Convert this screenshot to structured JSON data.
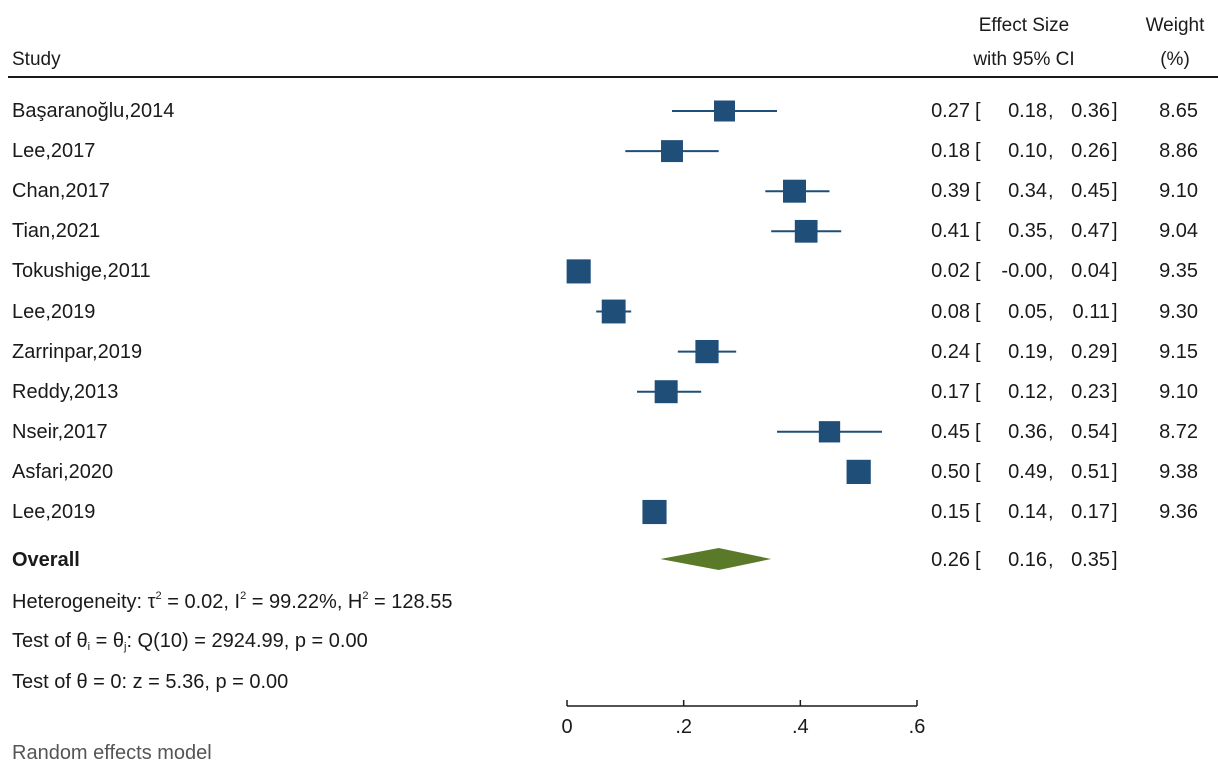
{
  "header": {
    "study": "Study",
    "effect_line1": "Effect Size",
    "effect_line2": "with 95% CI",
    "weight_line1": "Weight",
    "weight_line2": "(%)"
  },
  "overall": {
    "label": "Overall",
    "est": "0.26",
    "lo": "0.16",
    "hi": "0.35"
  },
  "heterogeneity": {
    "prefix": "Heterogeneity: τ",
    "tau_sup": "2",
    "part2": " = 0.02, I",
    "i_sup": "2",
    "part3": " = 99.22%, H",
    "h_sup": "2",
    "part4": " = 128.55"
  },
  "test_homog": {
    "prefix": "Test of θ",
    "sub_i": "i",
    "mid": " = θ",
    "sub_j": "j",
    "rest": ": Q(10) = 2924.99, p = 0.00"
  },
  "test_zero": "Test of θ = 0: z = 5.36, p = 0.00",
  "caption": "Random effects model",
  "colors": {
    "square": "#1f4e79",
    "diamond": "#5a7a2a",
    "ci_line": "#1f4e79",
    "axis": "#1a1a1a"
  },
  "chart_data": {
    "type": "scatter",
    "subtype": "forest-plot",
    "xlim": [
      0,
      0.6
    ],
    "xticks": [
      "0",
      ".2",
      ".4",
      ".6"
    ],
    "tick_values": [
      0,
      0.2,
      0.4,
      0.6
    ],
    "studies": [
      {
        "name": "Başaranoğlu,2014",
        "est": 0.27,
        "lo": 0.18,
        "hi": 0.36,
        "weight": 8.65,
        "est_t": "0.27",
        "lo_t": "0.18",
        "hi_t": "0.36",
        "weight_t": "8.65"
      },
      {
        "name": "Lee,2017",
        "est": 0.18,
        "lo": 0.1,
        "hi": 0.26,
        "weight": 8.86,
        "est_t": "0.18",
        "lo_t": "0.10",
        "hi_t": "0.26",
        "weight_t": "8.86"
      },
      {
        "name": "Chan,2017",
        "est": 0.39,
        "lo": 0.34,
        "hi": 0.45,
        "weight": 9.1,
        "est_t": "0.39",
        "lo_t": "0.34",
        "hi_t": "0.45",
        "weight_t": "9.10"
      },
      {
        "name": "Tian,2021",
        "est": 0.41,
        "lo": 0.35,
        "hi": 0.47,
        "weight": 9.04,
        "est_t": "0.41",
        "lo_t": "0.35",
        "hi_t": "0.47",
        "weight_t": "9.04"
      },
      {
        "name": "Tokushige,2011",
        "est": 0.02,
        "lo": -0.0,
        "hi": 0.04,
        "weight": 9.35,
        "est_t": "0.02",
        "lo_t": "-0.00",
        "hi_t": "0.04",
        "weight_t": "9.35"
      },
      {
        "name": "Lee,2019",
        "est": 0.08,
        "lo": 0.05,
        "hi": 0.11,
        "weight": 9.3,
        "est_t": "0.08",
        "lo_t": "0.05",
        "hi_t": "0.11",
        "weight_t": "9.30"
      },
      {
        "name": "Zarrinpar,2019",
        "est": 0.24,
        "lo": 0.19,
        "hi": 0.29,
        "weight": 9.15,
        "est_t": "0.24",
        "lo_t": "0.19",
        "hi_t": "0.29",
        "weight_t": "9.15"
      },
      {
        "name": "Reddy,2013",
        "est": 0.17,
        "lo": 0.12,
        "hi": 0.23,
        "weight": 9.1,
        "est_t": "0.17",
        "lo_t": "0.12",
        "hi_t": "0.23",
        "weight_t": "9.10"
      },
      {
        "name": "Nseir,2017",
        "est": 0.45,
        "lo": 0.36,
        "hi": 0.54,
        "weight": 8.72,
        "est_t": "0.45",
        "lo_t": "0.36",
        "hi_t": "0.54",
        "weight_t": "8.72"
      },
      {
        "name": "Asfari,2020",
        "est": 0.5,
        "lo": 0.49,
        "hi": 0.51,
        "weight": 9.38,
        "est_t": "0.50",
        "lo_t": "0.49",
        "hi_t": "0.51",
        "weight_t": "9.38"
      },
      {
        "name": "Lee,2019",
        "est": 0.15,
        "lo": 0.14,
        "hi": 0.17,
        "weight": 9.36,
        "est_t": "0.15",
        "lo_t": "0.14",
        "hi_t": "0.17",
        "weight_t": "9.36"
      }
    ],
    "overall": {
      "est": 0.26,
      "lo": 0.16,
      "hi": 0.35
    }
  }
}
